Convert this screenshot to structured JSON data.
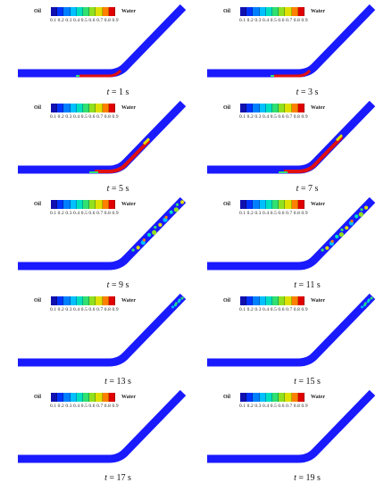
{
  "legend": {
    "left_label": "Oil",
    "right_label": "Water",
    "ticks": "0.1 0.2 0.3 0.4 0.5 0.6 0.7 0.8 0.9",
    "colors": [
      "#1010b0",
      "#0033ff",
      "#0080ff",
      "#00c0ff",
      "#00e0c0",
      "#30e070",
      "#90e020",
      "#e0e000",
      "#ff8000",
      "#e00000"
    ]
  },
  "pipe_color": "#1a1aff",
  "panels": [
    {
      "time": "1 s",
      "stage": "red-bottom",
      "red_extent": 0.55
    },
    {
      "time": "3 s",
      "stage": "red-bottom",
      "red_extent": 0.45
    },
    {
      "time": "5 s",
      "stage": "red-bend",
      "red_extent": 0.65
    },
    {
      "time": "7 s",
      "stage": "red-bend",
      "red_extent": 0.75
    },
    {
      "time": "9 s",
      "stage": "mixed-incline",
      "mix_extent": 0.55
    },
    {
      "time": "11 s",
      "stage": "mixed-incline",
      "mix_extent": 0.45
    },
    {
      "time": "13 s",
      "stage": "mixed-top",
      "mix_extent": 0.2
    },
    {
      "time": "15 s",
      "stage": "mixed-top",
      "mix_extent": 0.15
    },
    {
      "time": "17 s",
      "stage": "clean",
      "mix_extent": 0
    },
    {
      "time": "19 s",
      "stage": "clean",
      "mix_extent": 0
    }
  ],
  "caption_prefix": "t",
  "caption_eq": " = "
}
